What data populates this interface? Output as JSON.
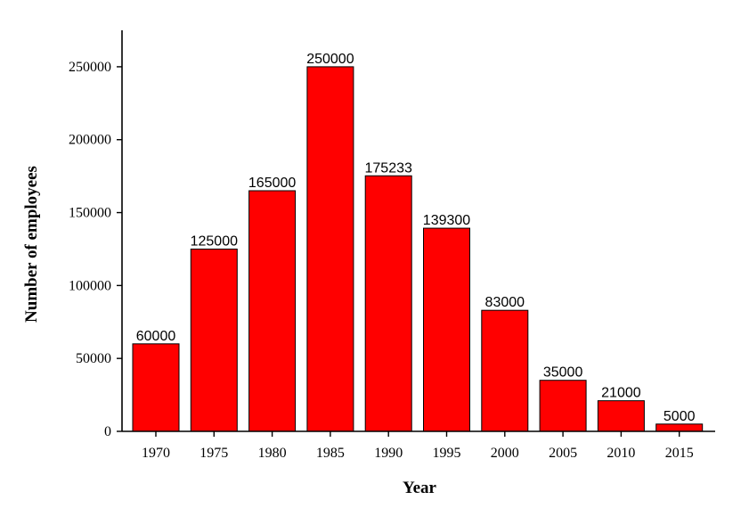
{
  "chart_data": {
    "type": "bar",
    "categories": [
      "1970",
      "1975",
      "1980",
      "1985",
      "1990",
      "1995",
      "2000",
      "2005",
      "2010",
      "2015"
    ],
    "values": [
      60000,
      125000,
      165000,
      250000,
      175233,
      139300,
      83000,
      35000,
      21000,
      5000
    ],
    "data_labels": [
      "60000",
      "125000",
      "165000",
      "250000",
      "175233",
      "139300",
      "83000",
      "35000",
      "21000",
      "5000"
    ],
    "xlabel": "Year",
    "ylabel": "Number of employees",
    "ylim": [
      0,
      275000
    ],
    "yticks": [
      0,
      50000,
      100000,
      150000,
      200000,
      250000
    ],
    "ytick_labels": [
      "0",
      "50000",
      "100000",
      "150000",
      "200000",
      "250000"
    ],
    "grid": false,
    "bar_color": "#ff0000",
    "bar_edge_color": "#000000"
  }
}
